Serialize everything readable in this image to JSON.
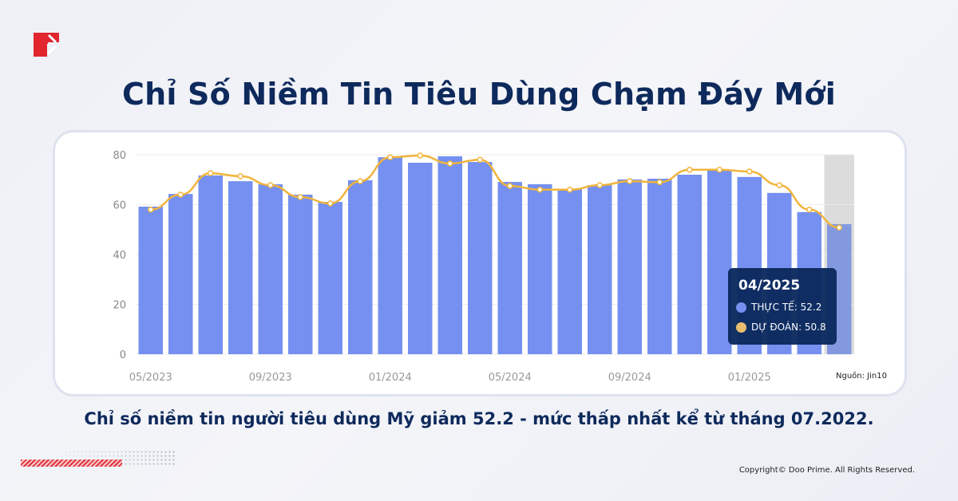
{
  "brand": {
    "logo": "doo-prime-logo",
    "logo_color": "#e1262d"
  },
  "title": "Chỉ Số Niềm Tin Tiêu Dùng Chạm Đáy Mới",
  "subtitle": "Chỉ số niềm tin người tiêu dùng Mỹ giảm 52.2 - mức thấp nhất kể từ tháng 07.2022.",
  "copyright": "Copyright© Doo Prime. All Rights Reserved.",
  "source": "Nguồn: Jin10",
  "tooltip": {
    "date": "04/2025",
    "actual_label": "THỰC TẾ: 52.2",
    "forecast_label": "DỰ ĐOÁN: 50.8"
  },
  "chart_data": {
    "type": "bar",
    "categories": [
      "05/2023",
      "06/2023",
      "07/2023",
      "08/2023",
      "09/2023",
      "10/2023",
      "11/2023",
      "12/2023",
      "01/2024",
      "02/2024",
      "03/2024",
      "04/2024",
      "05/2024",
      "06/2024",
      "07/2024",
      "08/2024",
      "09/2024",
      "10/2024",
      "11/2024",
      "12/2024",
      "01/2025",
      "02/2025",
      "03/2025",
      "04/2025"
    ],
    "x_tick_labels": [
      "05/2023",
      "09/2023",
      "01/2024",
      "05/2024",
      "09/2024",
      "01/2025"
    ],
    "y_ticks": [
      "0",
      "20",
      "40",
      "60",
      "80"
    ],
    "ylim": [
      0,
      80
    ],
    "grid": true,
    "highlighted_category": "04/2025",
    "series": [
      {
        "name": "THỰC TẾ",
        "type": "bar",
        "color": "#7590f0",
        "values": [
          59.2,
          64.3,
          71.7,
          69.4,
          68.2,
          64.0,
          61.1,
          69.8,
          79.0,
          76.8,
          79.4,
          77.1,
          69.1,
          68.2,
          66.2,
          67.8,
          70.1,
          70.4,
          72.0,
          74.0,
          71.1,
          64.7,
          57.0,
          52.2
        ]
      },
      {
        "name": "DỰ ĐOÁN",
        "type": "line",
        "color": "#f0b43c",
        "values": [
          58.0,
          64.0,
          72.6,
          71.4,
          67.8,
          63.0,
          60.5,
          69.4,
          79.0,
          79.7,
          76.5,
          78.0,
          67.5,
          66.0,
          66.0,
          67.8,
          69.4,
          69.0,
          74.0,
          74.0,
          73.3,
          67.8,
          58.0,
          50.8
        ]
      }
    ]
  }
}
